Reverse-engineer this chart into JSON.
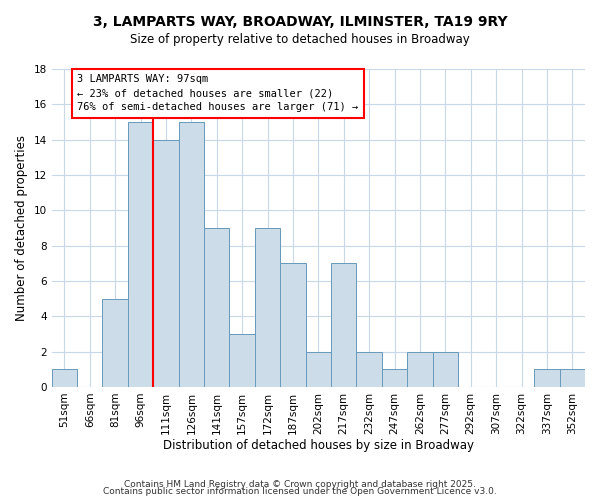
{
  "title": "3, LAMPARTS WAY, BROADWAY, ILMINSTER, TA19 9RY",
  "subtitle": "Size of property relative to detached houses in Broadway",
  "xlabel": "Distribution of detached houses by size in Broadway",
  "ylabel": "Number of detached properties",
  "bar_color": "#ccdce8",
  "bar_edge_color": "#6699bb",
  "categories": [
    "51sqm",
    "66sqm",
    "81sqm",
    "96sqm",
    "111sqm",
    "126sqm",
    "141sqm",
    "157sqm",
    "172sqm",
    "187sqm",
    "202sqm",
    "217sqm",
    "232sqm",
    "247sqm",
    "262sqm",
    "277sqm",
    "292sqm",
    "307sqm",
    "322sqm",
    "337sqm",
    "352sqm"
  ],
  "values": [
    1,
    0,
    5,
    15,
    14,
    15,
    9,
    3,
    9,
    7,
    2,
    7,
    2,
    1,
    2,
    2,
    0,
    0,
    0,
    1,
    1
  ],
  "ylim": [
    0,
    18
  ],
  "yticks": [
    0,
    2,
    4,
    6,
    8,
    10,
    12,
    14,
    16,
    18
  ],
  "red_line_index": 3,
  "annotation_title": "3 LAMPARTS WAY: 97sqm",
  "annotation_line1": "← 23% of detached houses are smaller (22)",
  "annotation_line2": "76% of semi-detached houses are larger (71) →",
  "footer1": "Contains HM Land Registry data © Crown copyright and database right 2025.",
  "footer2": "Contains public sector information licensed under the Open Government Licence v3.0.",
  "background_color": "#ffffff",
  "grid_color": "#c8d8e8",
  "title_fontsize": 10,
  "subtitle_fontsize": 8.5,
  "xlabel_fontsize": 8.5,
  "ylabel_fontsize": 8.5,
  "tick_fontsize": 7.5,
  "annotation_fontsize": 7.5,
  "footer_fontsize": 6.5
}
